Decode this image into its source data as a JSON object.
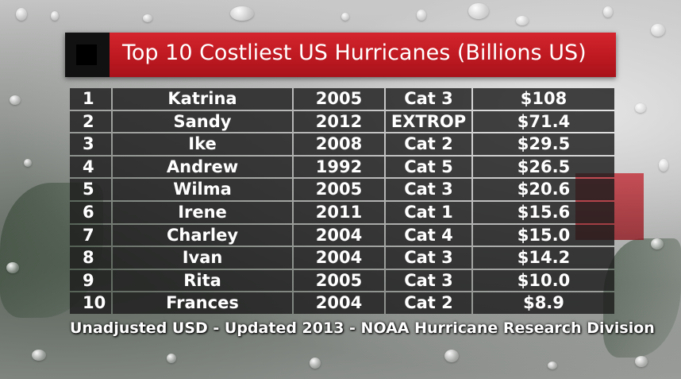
{
  "header": {
    "title": "Top 10 Costliest US Hurricanes (Billions US)"
  },
  "chart_data": {
    "type": "table",
    "title": "Top 10 Costliest US Hurricanes (Billions US)",
    "columns": [],
    "rows": [
      {
        "rank": "1",
        "name": "Katrina",
        "year": "2005",
        "category": "Cat 3",
        "cost": "$108"
      },
      {
        "rank": "2",
        "name": "Sandy",
        "year": "2012",
        "category": "EXTROP",
        "cost": "$71.4"
      },
      {
        "rank": "3",
        "name": "Ike",
        "year": "2008",
        "category": "Cat 2",
        "cost": "$29.5"
      },
      {
        "rank": "4",
        "name": "Andrew",
        "year": "1992",
        "category": "Cat 5",
        "cost": "$26.5"
      },
      {
        "rank": "5",
        "name": "Wilma",
        "year": "2005",
        "category": "Cat 3",
        "cost": "$20.6"
      },
      {
        "rank": "6",
        "name": "Irene",
        "year": "2011",
        "category": "Cat 1",
        "cost": "$15.6"
      },
      {
        "rank": "7",
        "name": "Charley",
        "year": "2004",
        "category": "Cat 4",
        "cost": "$15.0"
      },
      {
        "rank": "8",
        "name": "Ivan",
        "year": "2004",
        "category": "Cat 3",
        "cost": "$14.2"
      },
      {
        "rank": "9",
        "name": "Rita",
        "year": "2005",
        "category": "Cat 3",
        "cost": "$10.0"
      },
      {
        "rank": "10",
        "name": "Frances",
        "year": "2004",
        "category": "Cat 2",
        "cost": "$8.9"
      }
    ]
  },
  "footer": {
    "source": "Unadjusted USD - Updated 2013  - NOAA Hurricane Research Division"
  },
  "colors": {
    "accent": "#c01a22",
    "cell_bg": "#1c1c1c",
    "text": "#ffffff"
  }
}
